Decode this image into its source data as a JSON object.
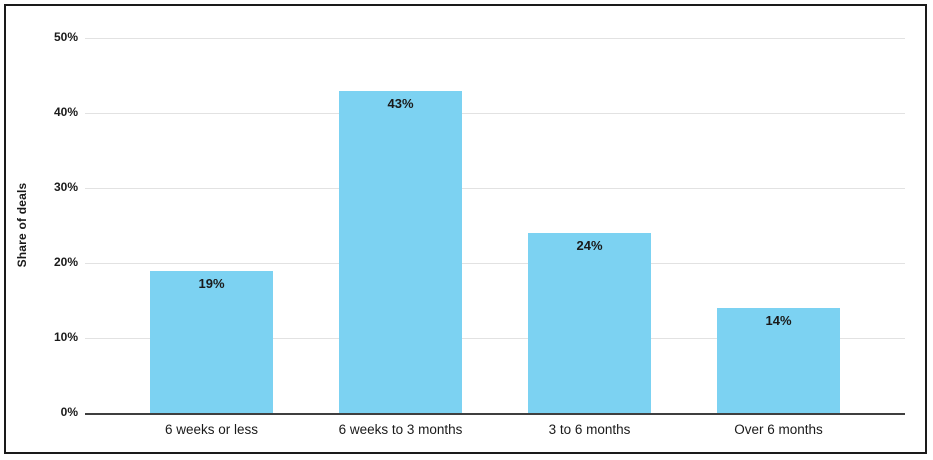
{
  "chart_data": {
    "type": "bar",
    "categories": [
      "6 weeks or less",
      "6 weeks to 3 months",
      "3 to 6 months",
      "Over 6 months"
    ],
    "values": [
      19,
      43,
      24,
      14
    ],
    "value_labels": [
      "19%",
      "43%",
      "24%",
      "14%"
    ],
    "title": "",
    "xlabel": "",
    "ylabel": "Share of deals",
    "ylim": [
      0,
      50
    ],
    "yticks": [
      0,
      10,
      20,
      30,
      40,
      50
    ],
    "ytick_labels": [
      "0%",
      "10%",
      "20%",
      "30%",
      "40%",
      "50%"
    ],
    "grid": true,
    "legend": "none",
    "value_labels_position": "inside-top"
  },
  "style": {
    "bar_color": "#7cd2f2",
    "grid_color": "#e2e2e2",
    "axis_color": "#3f3f3f",
    "text_color": "#1a1a1a",
    "frame_color": "#1a1a1a",
    "background": "#ffffff"
  }
}
